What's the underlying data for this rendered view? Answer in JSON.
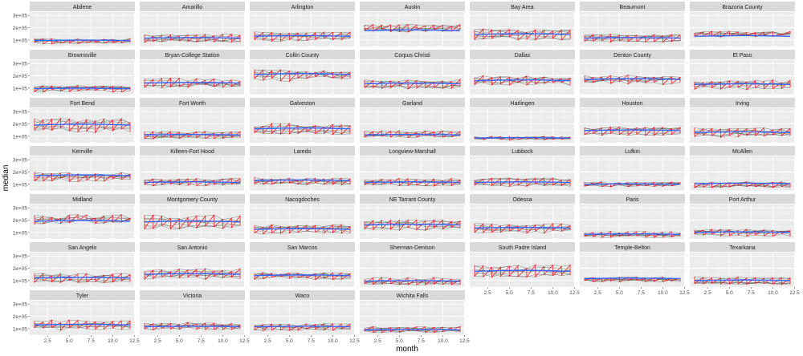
{
  "chart_data": {
    "type": "line",
    "xlabel": "month",
    "ylabel": "median",
    "xlim": [
      0.45,
      12.55
    ],
    "ylim": [
      47000,
      327000
    ],
    "x_ticks": [
      "2.5",
      "5.0",
      "7.5",
      "10.0",
      "12.5"
    ],
    "x_tick_values": [
      2.5,
      5,
      7.5,
      10,
      12.5
    ],
    "y_ticks": [
      "1e+05",
      "2e+05",
      "3e+05"
    ],
    "y_tick_values": [
      100000,
      200000,
      300000
    ],
    "grid": true,
    "series_colors": {
      "years": "#555555",
      "month_path": "#ff0000",
      "trend": "#3366ff"
    },
    "facets": [
      {
        "name": "Abilene",
        "trend": 95000
      },
      {
        "name": "Amarillo",
        "trend": 115000
      },
      {
        "name": "Arlington",
        "trend": 130000
      },
      {
        "name": "Austin",
        "trend": 175000
      },
      {
        "name": "Bay Area",
        "trend": 145000
      },
      {
        "name": "Beaumont",
        "trend": 115000
      },
      {
        "name": "Brazoria County",
        "trend": 130000
      },
      {
        "name": "Brownsville",
        "trend": 95000
      },
      {
        "name": "Bryan-College Station",
        "trend": 140000
      },
      {
        "name": "Collin County",
        "trend": 210000
      },
      {
        "name": "Corpus Christi",
        "trend": 135000
      },
      {
        "name": "Dallas",
        "trend": 160000
      },
      {
        "name": "Denton County",
        "trend": 170000
      },
      {
        "name": "El Paso",
        "trend": 130000
      },
      {
        "name": "Fort Bend",
        "trend": 190000
      },
      {
        "name": "Fort Worth",
        "trend": 110000
      },
      {
        "name": "Galveston",
        "trend": 160000
      },
      {
        "name": "Garland",
        "trend": 110000
      },
      {
        "name": "Harlingen",
        "trend": 85000
      },
      {
        "name": "Houston",
        "trend": 145000
      },
      {
        "name": "Irving",
        "trend": 130000
      },
      {
        "name": "Kerrville",
        "trend": 170000
      },
      {
        "name": "Killeen-Fort Hood",
        "trend": 115000
      },
      {
        "name": "Laredo",
        "trend": 130000
      },
      {
        "name": "Longview-Marshall",
        "trend": 115000
      },
      {
        "name": "Lubbock",
        "trend": 115000
      },
      {
        "name": "Lufkin",
        "trend": 100000
      },
      {
        "name": "McAllen",
        "trend": 105000
      },
      {
        "name": "Midland",
        "trend": 190000
      },
      {
        "name": "Montgomery County",
        "trend": 185000
      },
      {
        "name": "Nacogdoches",
        "trend": 125000
      },
      {
        "name": "NE Tarrant County",
        "trend": 160000
      },
      {
        "name": "Odessa",
        "trend": 135000
      },
      {
        "name": "Paris",
        "trend": 85000
      },
      {
        "name": "Port Arthur",
        "trend": 100000
      },
      {
        "name": "San Angelo",
        "trend": 120000
      },
      {
        "name": "San Antonio",
        "trend": 150000
      },
      {
        "name": "San Marcos",
        "trend": 140000
      },
      {
        "name": "Sherman-Denison",
        "trend": 95000
      },
      {
        "name": "South Padre Island",
        "trend": 175000
      },
      {
        "name": "Temple-Belton",
        "trend": 115000
      },
      {
        "name": "Texarkana",
        "trend": 100000
      },
      {
        "name": "Tyler",
        "trend": 130000
      },
      {
        "name": "Victoria",
        "trend": 115000
      },
      {
        "name": "Waco",
        "trend": 115000
      },
      {
        "name": "Wichita Falls",
        "trend": 90000
      }
    ]
  }
}
